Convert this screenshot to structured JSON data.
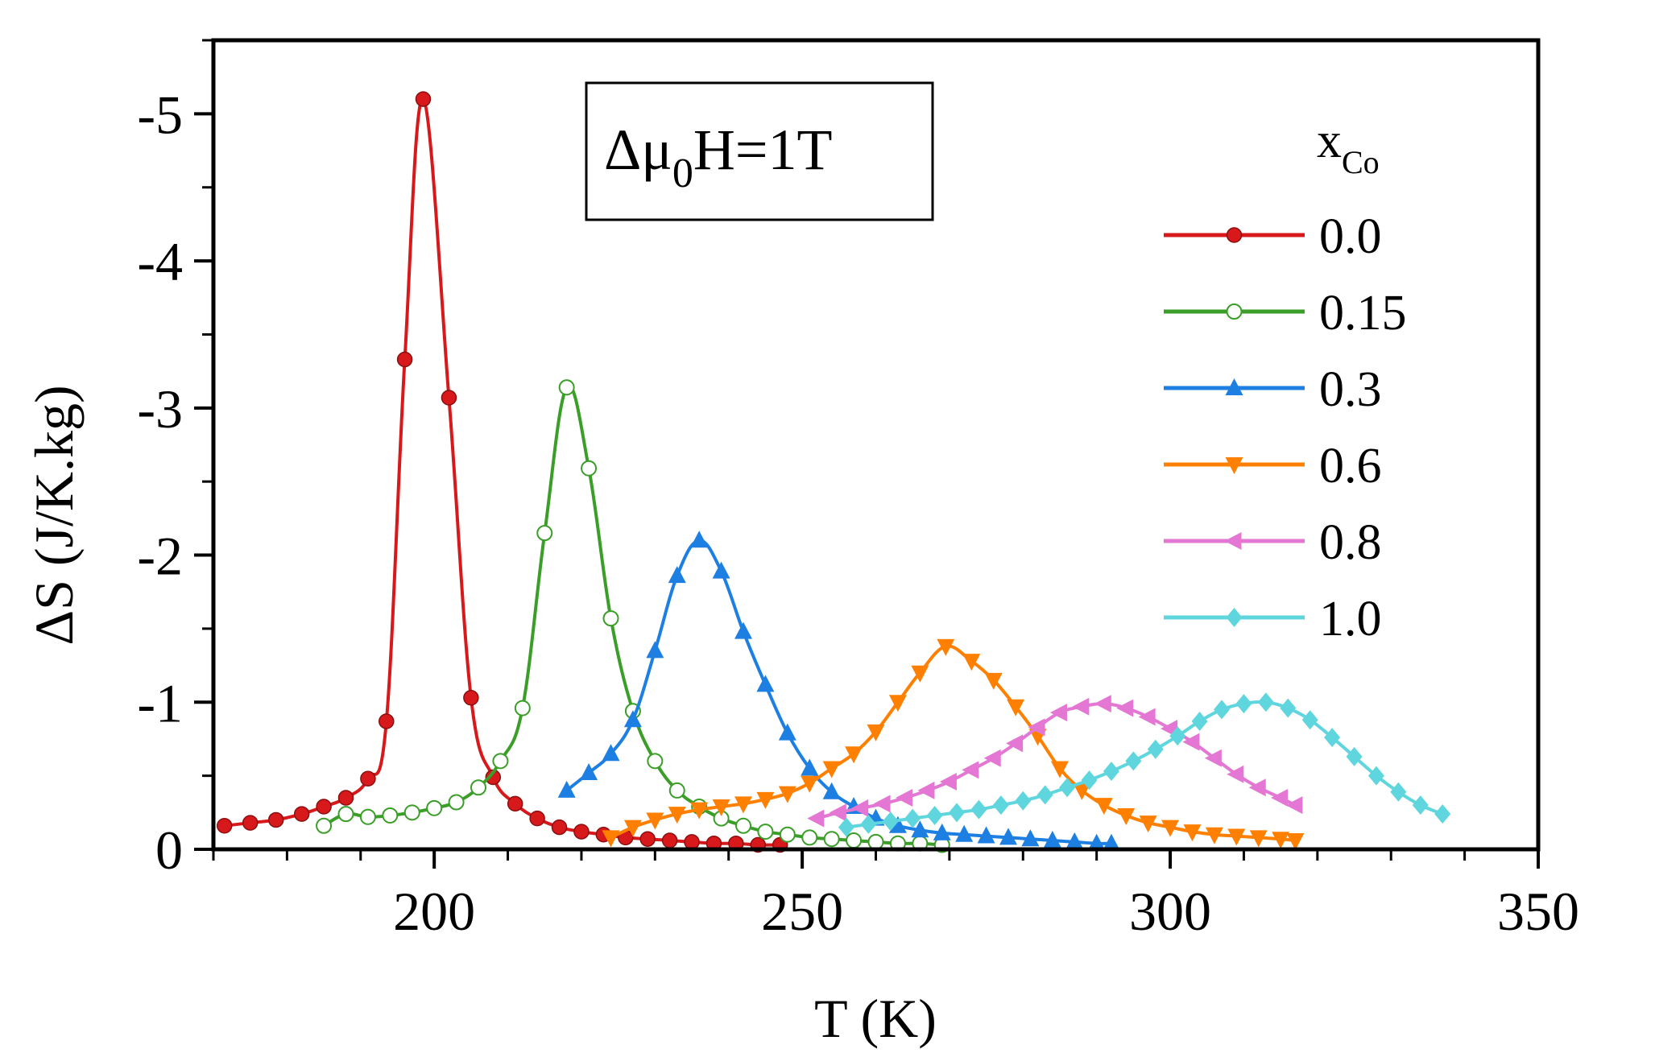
{
  "chart_data": {
    "type": "line",
    "title": "",
    "xlabel": "T (K)",
    "ylabel": "ΔS (J/K.kg)",
    "xlim": [
      170,
      350
    ],
    "ylim": [
      0,
      -5.5
    ],
    "xticks": [
      200,
      250,
      300,
      350
    ],
    "xtick_labels": [
      "200",
      "250",
      "300",
      "350"
    ],
    "yticks": [
      0,
      -1,
      -2,
      -3,
      -4,
      -5
    ],
    "ytick_labels": [
      "0",
      "-1",
      "-2",
      "-3",
      "-4",
      "-5"
    ],
    "annotation": {
      "main": "Δμ",
      "sub": "0",
      "rest": "H=1T"
    },
    "legend": {
      "title_main": "x",
      "title_sub": "Co",
      "position": "right"
    },
    "series": [
      {
        "name": "0.0",
        "color": "#d7191c",
        "marker": "sphere",
        "x": [
          171.5,
          175,
          178.5,
          182,
          185,
          188,
          191,
          193.5,
          196,
          198.5,
          202,
          205,
          208,
          211,
          214,
          217,
          220,
          223,
          226,
          229,
          232,
          235,
          238,
          241,
          244,
          247
        ],
        "y": [
          -0.16,
          -0.18,
          -0.2,
          -0.24,
          -0.29,
          -0.35,
          -0.48,
          -0.87,
          -3.33,
          -5.1,
          -3.07,
          -1.03,
          -0.49,
          -0.31,
          -0.21,
          -0.15,
          -0.12,
          -0.1,
          -0.08,
          -0.07,
          -0.06,
          -0.05,
          -0.04,
          -0.04,
          -0.03,
          -0.03
        ]
      },
      {
        "name": "0.15",
        "color": "#3a9e28",
        "marker": "open-circle",
        "x": [
          185,
          188,
          191,
          194,
          197,
          200,
          203,
          206,
          209,
          212,
          215,
          218,
          221,
          224,
          227,
          230,
          233,
          236,
          239,
          242,
          245,
          248,
          251,
          254,
          257,
          260,
          263,
          266,
          269
        ],
        "y": [
          -0.16,
          -0.24,
          -0.22,
          -0.23,
          -0.25,
          -0.28,
          -0.32,
          -0.42,
          -0.6,
          -0.96,
          -2.15,
          -3.14,
          -2.59,
          -1.57,
          -0.94,
          -0.6,
          -0.4,
          -0.29,
          -0.21,
          -0.16,
          -0.12,
          -0.1,
          -0.08,
          -0.07,
          -0.06,
          -0.05,
          -0.04,
          -0.04,
          -0.03
        ]
      },
      {
        "name": "0.3",
        "color": "#1e7fe3",
        "marker": "triangle-up",
        "x": [
          218,
          221,
          224,
          227,
          230,
          233,
          236,
          239,
          242,
          245,
          248,
          251,
          254,
          257,
          260,
          263,
          266,
          269,
          272,
          275,
          278,
          281,
          284,
          287,
          290,
          292
        ],
        "y": [
          -0.4,
          -0.52,
          -0.65,
          -0.88,
          -1.35,
          -1.86,
          -2.1,
          -1.89,
          -1.48,
          -1.12,
          -0.79,
          -0.55,
          -0.39,
          -0.29,
          -0.21,
          -0.16,
          -0.13,
          -0.11,
          -0.1,
          -0.09,
          -0.08,
          -0.07,
          -0.06,
          -0.05,
          -0.04,
          -0.04
        ]
      },
      {
        "name": "0.6",
        "color": "#ff8000",
        "marker": "triangle-down",
        "x": [
          224,
          227,
          230,
          233,
          236,
          239,
          242,
          245,
          248,
          251,
          254,
          257,
          260,
          263,
          266,
          269.5,
          273,
          276,
          279,
          282,
          285,
          288,
          291,
          294,
          297,
          300,
          303,
          306,
          309,
          312,
          315,
          317
        ],
        "y": [
          -0.08,
          -0.15,
          -0.2,
          -0.24,
          -0.27,
          -0.29,
          -0.31,
          -0.34,
          -0.38,
          -0.45,
          -0.55,
          -0.65,
          -0.8,
          -1.0,
          -1.2,
          -1.38,
          -1.28,
          -1.15,
          -0.97,
          -0.77,
          -0.55,
          -0.4,
          -0.3,
          -0.23,
          -0.18,
          -0.15,
          -0.12,
          -0.1,
          -0.09,
          -0.08,
          -0.07,
          -0.06
        ]
      },
      {
        "name": "0.8",
        "color": "#e377d3",
        "marker": "triangle-left",
        "x": [
          252,
          255,
          258,
          261,
          264,
          267,
          270,
          273,
          276,
          279,
          282,
          285,
          288,
          291,
          294,
          297,
          300,
          303,
          306,
          309,
          312,
          315,
          317
        ],
        "y": [
          -0.21,
          -0.25,
          -0.28,
          -0.31,
          -0.35,
          -0.4,
          -0.46,
          -0.54,
          -0.62,
          -0.72,
          -0.83,
          -0.93,
          -0.97,
          -0.99,
          -0.96,
          -0.9,
          -0.82,
          -0.73,
          -0.62,
          -0.51,
          -0.42,
          -0.35,
          -0.3
        ]
      },
      {
        "name": "1.0",
        "color": "#5fd6dd",
        "marker": "diamond",
        "x": [
          256,
          259,
          262,
          265,
          268,
          271,
          274,
          277,
          280,
          283,
          286,
          289,
          292,
          295,
          298,
          301,
          304,
          307,
          310,
          313,
          316,
          319,
          322,
          325,
          328,
          331,
          334,
          337
        ],
        "y": [
          -0.15,
          -0.17,
          -0.19,
          -0.21,
          -0.23,
          -0.25,
          -0.27,
          -0.3,
          -0.33,
          -0.37,
          -0.42,
          -0.47,
          -0.53,
          -0.6,
          -0.68,
          -0.77,
          -0.87,
          -0.95,
          -0.99,
          -1.0,
          -0.96,
          -0.88,
          -0.76,
          -0.63,
          -0.5,
          -0.39,
          -0.3,
          -0.24
        ]
      }
    ]
  }
}
